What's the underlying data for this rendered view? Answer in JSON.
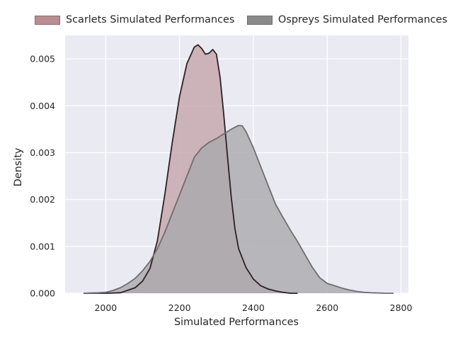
{
  "chart_data": {
    "type": "area",
    "xlabel": "Simulated Performances",
    "ylabel": "Density",
    "xlim": [
      1890,
      2820
    ],
    "ylim": [
      0,
      0.0055
    ],
    "xticks": [
      2000,
      2200,
      2400,
      2600,
      2800
    ],
    "xtick_labels": [
      "2000",
      "2200",
      "2400",
      "2600",
      "2800"
    ],
    "yticks": [
      0,
      0.001,
      0.002,
      0.003,
      0.004,
      0.005
    ],
    "ytick_labels": [
      "0.000",
      "0.001",
      "0.002",
      "0.003",
      "0.004",
      "0.005"
    ],
    "grid": true,
    "legend_position": "top",
    "series": [
      {
        "name": "Scarlets Simulated Performances",
        "color": "#c4a4aa",
        "edge_color": "#2e2024",
        "x": [
          1940,
          2000,
          2040,
          2080,
          2100,
          2120,
          2140,
          2160,
          2180,
          2200,
          2220,
          2240,
          2250,
          2260,
          2270,
          2280,
          2290,
          2300,
          2310,
          2320,
          2330,
          2340,
          2350,
          2360,
          2380,
          2400,
          2420,
          2440,
          2460,
          2480,
          2500,
          2520
        ],
        "y": [
          0,
          0,
          1e-05,
          0.00012,
          0.00026,
          0.00053,
          0.00112,
          0.0021,
          0.0032,
          0.0042,
          0.0049,
          0.00525,
          0.0053,
          0.00522,
          0.0051,
          0.00512,
          0.0052,
          0.0051,
          0.0046,
          0.0038,
          0.0029,
          0.00205,
          0.00138,
          0.00095,
          0.00055,
          0.0003,
          0.00016,
          9e-05,
          5e-05,
          2e-05,
          0,
          0
        ]
      },
      {
        "name": "Ospreys Simulated Performances",
        "color": "#a9a9ad",
        "edge_color": "#6e6e6e",
        "x": [
          1940,
          1980,
          2000,
          2020,
          2040,
          2060,
          2080,
          2100,
          2120,
          2140,
          2160,
          2180,
          2200,
          2220,
          2240,
          2260,
          2280,
          2300,
          2320,
          2340,
          2360,
          2370,
          2380,
          2400,
          2420,
          2440,
          2460,
          2480,
          2500,
          2520,
          2540,
          2560,
          2580,
          2600,
          2620,
          2640,
          2660,
          2680,
          2700,
          2720,
          2760,
          2780
        ],
        "y": [
          0,
          1e-05,
          2e-05,
          6e-05,
          0.00012,
          0.00021,
          0.00032,
          0.00048,
          0.00068,
          0.00095,
          0.0013,
          0.0017,
          0.0021,
          0.0025,
          0.0029,
          0.0031,
          0.00322,
          0.0033,
          0.0034,
          0.0035,
          0.00358,
          0.00357,
          0.00345,
          0.0031,
          0.0027,
          0.0023,
          0.0019,
          0.00162,
          0.00135,
          0.0011,
          0.00082,
          0.00055,
          0.00033,
          0.00021,
          0.00016,
          0.00011,
          7e-05,
          4e-05,
          2e-05,
          1e-05,
          0,
          0
        ]
      }
    ]
  }
}
